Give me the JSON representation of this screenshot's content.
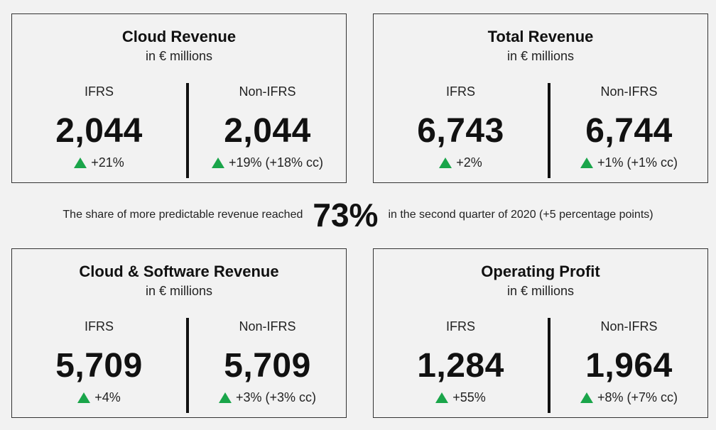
{
  "cards": [
    {
      "title": "Cloud Revenue",
      "subtitle": "in € millions",
      "ifrs": {
        "label": "IFRS",
        "value": "2,044",
        "change": "+21%"
      },
      "non_ifrs": {
        "label": "Non-IFRS",
        "value": "2,044",
        "change": "+19% (+18% cc)"
      }
    },
    {
      "title": "Total Revenue",
      "subtitle": "in € millions",
      "ifrs": {
        "label": "IFRS",
        "value": "6,743",
        "change": "+2%"
      },
      "non_ifrs": {
        "label": "Non-IFRS",
        "value": "6,744",
        "change": "+1% (+1% cc)"
      }
    },
    {
      "title": "Cloud & Software Revenue",
      "subtitle": "in € millions",
      "ifrs": {
        "label": "IFRS",
        "value": "5,709",
        "change": "+4%"
      },
      "non_ifrs": {
        "label": "Non-IFRS",
        "value": "5,709",
        "change": "+3% (+3% cc)"
      }
    },
    {
      "title": "Operating Profit",
      "subtitle": "in € millions",
      "ifrs": {
        "label": "IFRS",
        "value": "1,284",
        "change": "+55%"
      },
      "non_ifrs": {
        "label": "Non-IFRS",
        "value": "1,964",
        "change": "+8% (+7% cc)"
      }
    }
  ],
  "banner": {
    "prefix": "The share of more predictable revenue reached",
    "percent": "73%",
    "suffix": "in the second quarter of 2020 (+5 percentage points)"
  },
  "colors": {
    "up_arrow": "#1aa54a",
    "border": "#333333",
    "background": "#f2f2f2"
  },
  "icons": {
    "change_indicator": "triangle-up-icon"
  }
}
